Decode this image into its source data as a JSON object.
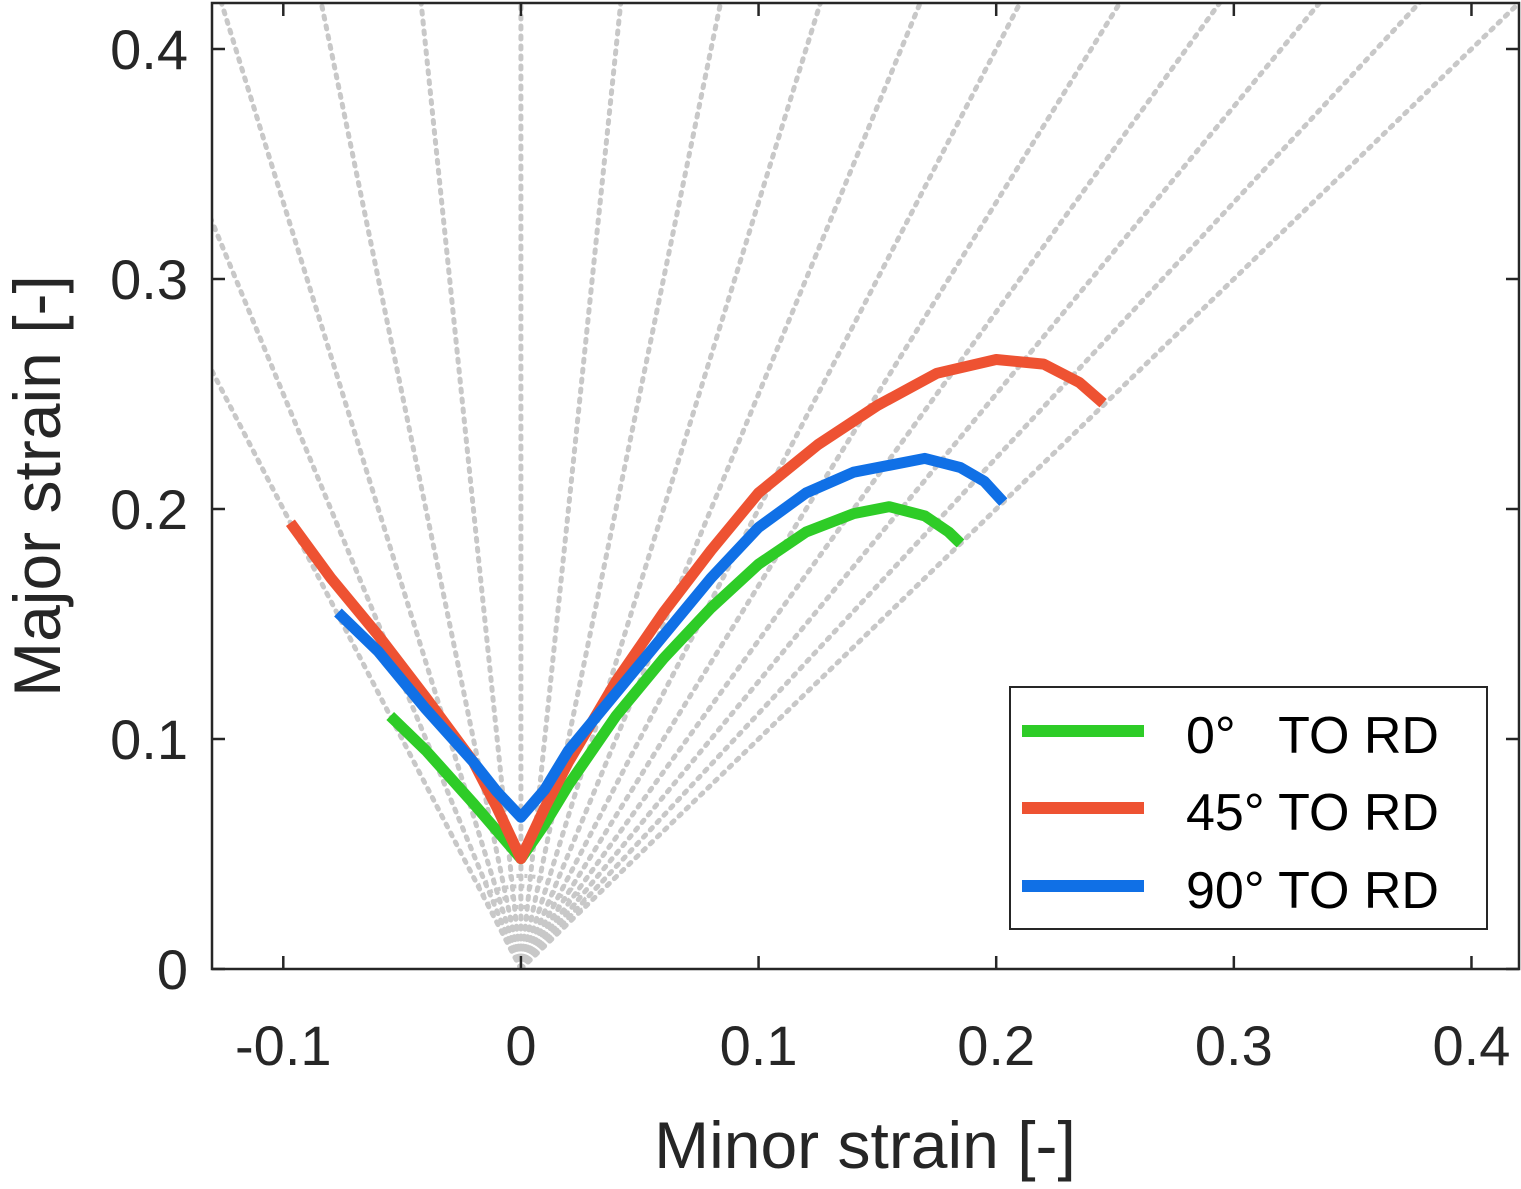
{
  "chart_data": {
    "type": "line",
    "title": "",
    "xlabel": "Minor strain [-]",
    "ylabel": "Major strain [-]",
    "xlim": [
      -0.13,
      0.42
    ],
    "ylim": [
      0,
      0.42
    ],
    "xticks": [
      "-0.1",
      "0",
      "0.1",
      "0.2",
      "0.3",
      "0.4"
    ],
    "xtick_values": [
      -0.1,
      0,
      0.1,
      0.2,
      0.3,
      0.4
    ],
    "yticks": [
      "0",
      "0.1",
      "0.2",
      "0.3",
      "0.4"
    ],
    "ytick_values": [
      0,
      0.1,
      0.2,
      0.3,
      0.4
    ],
    "grid": false,
    "legend_position": "bottom-right",
    "reference_lines": {
      "style": "dotted",
      "color": "#c8c8c8",
      "strain_ratios": [
        -0.5,
        -0.4,
        -0.3,
        -0.2,
        -0.1,
        0,
        0.1,
        0.2,
        0.3,
        0.4,
        0.5,
        0.6,
        0.7,
        0.8,
        0.9,
        1.0
      ]
    },
    "series": [
      {
        "name": "0°   TO RD",
        "color": "#2ecc27",
        "x": [
          -0.055,
          -0.04,
          -0.02,
          -0.01,
          0,
          0.01,
          0.02,
          0.04,
          0.06,
          0.08,
          0.1,
          0.12,
          0.14,
          0.155,
          0.17,
          0.18,
          0.185
        ],
        "y": [
          0.11,
          0.095,
          0.072,
          0.06,
          0.048,
          0.063,
          0.08,
          0.11,
          0.135,
          0.157,
          0.176,
          0.19,
          0.198,
          0.201,
          0.197,
          0.19,
          0.185
        ]
      },
      {
        "name": "45° TO RD",
        "color": "#ee5232",
        "x": [
          -0.097,
          -0.08,
          -0.06,
          -0.04,
          -0.02,
          -0.01,
          0,
          0.01,
          0.02,
          0.04,
          0.06,
          0.08,
          0.1,
          0.125,
          0.15,
          0.175,
          0.2,
          0.22,
          0.235,
          0.245
        ],
        "y": [
          0.194,
          0.17,
          0.145,
          0.118,
          0.09,
          0.07,
          0.048,
          0.07,
          0.09,
          0.125,
          0.155,
          0.182,
          0.207,
          0.228,
          0.245,
          0.259,
          0.265,
          0.263,
          0.255,
          0.246
        ]
      },
      {
        "name": "90° TO RD",
        "color": "#1070e6",
        "x": [
          -0.077,
          -0.06,
          -0.04,
          -0.02,
          -0.01,
          0,
          0.01,
          0.02,
          0.04,
          0.06,
          0.08,
          0.1,
          0.12,
          0.14,
          0.17,
          0.185,
          0.195,
          0.203
        ],
        "y": [
          0.155,
          0.138,
          0.113,
          0.09,
          0.077,
          0.066,
          0.078,
          0.095,
          0.12,
          0.145,
          0.17,
          0.192,
          0.207,
          0.216,
          0.222,
          0.218,
          0.212,
          0.203
        ]
      }
    ]
  }
}
